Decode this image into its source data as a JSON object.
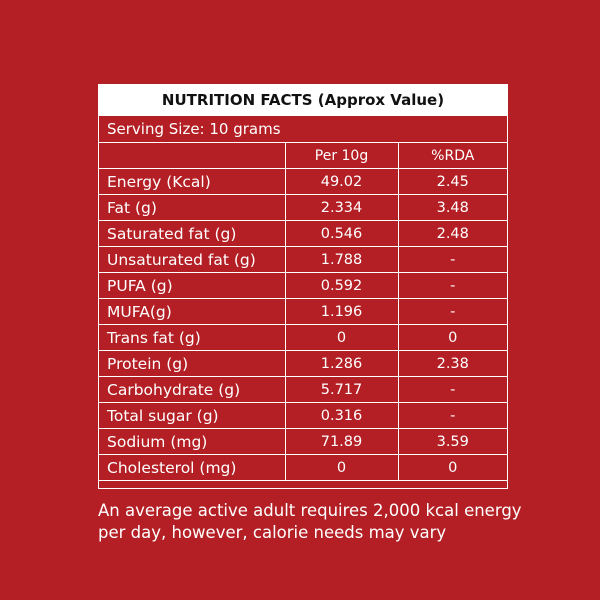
{
  "title": "NUTRITION FACTS (Approx Value)",
  "serving_size": "Serving Size: 10 grams",
  "columns": [
    "",
    "Per 10g",
    "%RDA"
  ],
  "rows": [
    {
      "nutrient": "Energy (Kcal)",
      "per_10g": "49.02",
      "rda": "2.45"
    },
    {
      "nutrient": "Fat (g)",
      "per_10g": "2.334",
      "rda": "3.48"
    },
    {
      "nutrient": "Saturated fat (g)",
      "per_10g": "0.546",
      "rda": "2.48"
    },
    {
      "nutrient": "Unsaturated fat (g)",
      "per_10g": "1.788",
      "rda": "-"
    },
    {
      "nutrient": "PUFA (g)",
      "per_10g": "0.592",
      "rda": "-"
    },
    {
      "nutrient": "MUFA(g)",
      "per_10g": "1.196",
      "rda": "-"
    },
    {
      "nutrient": "Trans fat  (g)",
      "per_10g": "0",
      "rda": "0"
    },
    {
      "nutrient": "Protein (g)",
      "per_10g": "1.286",
      "rda": "2.38"
    },
    {
      "nutrient": "Carbohydrate (g)",
      "per_10g": "5.717",
      "rda": "-"
    },
    {
      "nutrient": "Total sugar (g)",
      "per_10g": "0.316",
      "rda": "-"
    },
    {
      "nutrient": "Sodium (mg)",
      "per_10g": "71.89",
      "rda": "3.59"
    },
    {
      "nutrient": "Cholesterol (mg)",
      "per_10g": "0",
      "rda": "0"
    }
  ],
  "footnote": "An average active adult requires 2,000 kcal energy per day, however, calorie needs may vary",
  "colors": {
    "background": "#b31f24",
    "panel_header": "#ffffff",
    "text": "#ffffff",
    "title_text": "#111111"
  }
}
